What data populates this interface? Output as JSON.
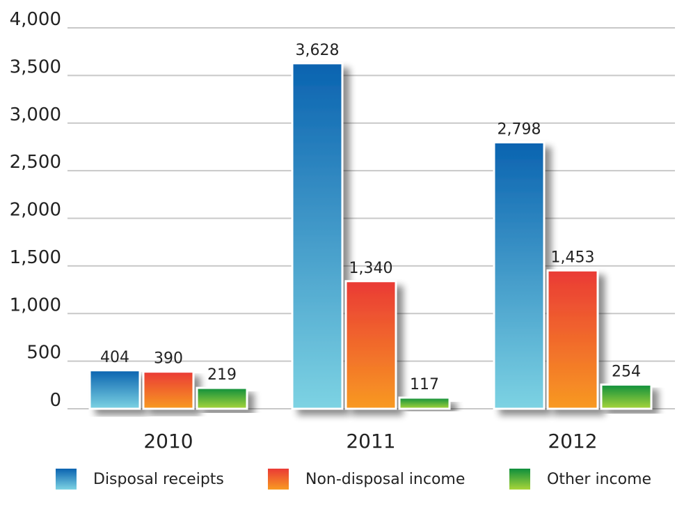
{
  "chart_data": {
    "type": "bar",
    "title": "",
    "xlabel": "",
    "ylabel": "",
    "categories": [
      "2010",
      "2011",
      "2012"
    ],
    "series": [
      {
        "name": "Disposal receipts",
        "values": [
          404,
          3628,
          2798
        ],
        "value_labels": [
          "404",
          "3,628",
          "2,798"
        ]
      },
      {
        "name": "Non-disposal income",
        "values": [
          390,
          1340,
          1453
        ],
        "value_labels": [
          "390",
          "1,340",
          "1,453"
        ]
      },
      {
        "name": "Other income",
        "values": [
          219,
          117,
          254
        ],
        "value_labels": [
          "219",
          "117",
          "254"
        ]
      }
    ],
    "ylim": [
      0,
      4000
    ],
    "yticks": [
      0,
      500,
      1000,
      1500,
      2000,
      2500,
      3000,
      3500,
      4000
    ],
    "ytick_labels": [
      "0",
      "500",
      "1,000",
      "1,500",
      "2,000",
      "2,500",
      "3,000",
      "3,500",
      "4,000"
    ],
    "grid": true,
    "legend_position": "bottom",
    "colors": {
      "disposal_receipts": [
        "#0a63b0",
        "#7dd3e3"
      ],
      "non_disposal_income": [
        "#ea3a35",
        "#f89a22"
      ],
      "other_income": [
        "#0e8f3c",
        "#a8d53a"
      ],
      "gridline": "#c8c8c8"
    }
  }
}
